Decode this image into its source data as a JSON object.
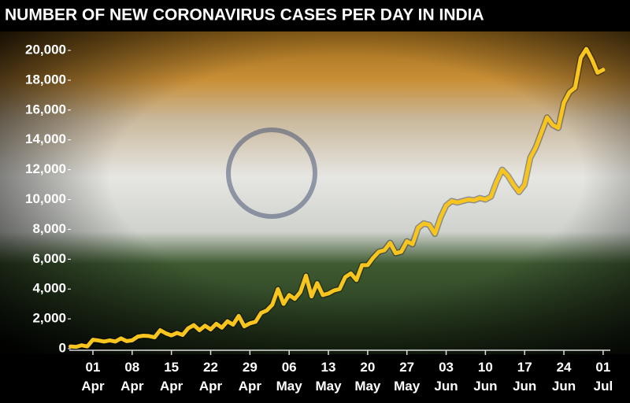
{
  "chart_data": {
    "type": "line",
    "title": "NUMBER OF NEW CORONAVIRUS CASES PER DAY IN INDIA",
    "categories": [
      null,
      null,
      null,
      null,
      "01 Apr",
      null,
      null,
      null,
      null,
      null,
      null,
      "08 Apr",
      null,
      null,
      null,
      null,
      null,
      null,
      "15 Apr",
      null,
      null,
      null,
      null,
      null,
      null,
      "22 Apr",
      null,
      null,
      null,
      null,
      null,
      null,
      "29 Apr",
      null,
      null,
      null,
      null,
      null,
      null,
      "06 May",
      null,
      null,
      null,
      null,
      null,
      null,
      "13 May",
      null,
      null,
      null,
      null,
      null,
      null,
      "20 May",
      null,
      null,
      null,
      null,
      null,
      null,
      "27 May",
      null,
      null,
      null,
      null,
      null,
      null,
      "03 Jun",
      null,
      null,
      null,
      null,
      null,
      null,
      "10 Jun",
      null,
      null,
      null,
      null,
      null,
      null,
      "17 Jun",
      null,
      null,
      null,
      null,
      null,
      null,
      "24 Jun",
      null,
      null,
      null,
      null,
      null,
      null,
      "01 Jul"
    ],
    "series": [
      {
        "name": "New cases",
        "color": "#f7c51e",
        "values": [
          150,
          120,
          230,
          150,
          600,
          550,
          480,
          560,
          480,
          690,
          510,
          560,
          810,
          870,
          850,
          760,
          1240,
          1030,
          890,
          1060,
          920,
          1370,
          1580,
          1240,
          1540,
          1290,
          1670,
          1410,
          1840,
          1610,
          2200,
          1500,
          1700,
          1800,
          2400,
          2560,
          2950,
          4000,
          3000,
          3600,
          3340,
          3800,
          4900,
          3500,
          4400,
          3600,
          3700,
          3900,
          4000,
          4800,
          5050,
          4600,
          5600,
          5600,
          6100,
          6500,
          6600,
          7100,
          6400,
          6500,
          7200,
          7000,
          8100,
          8400,
          8300,
          7700,
          8800,
          9600,
          9900,
          9800,
          9900,
          10000,
          9950,
          10100,
          10000,
          10200,
          11200,
          12000,
          11600,
          11000,
          10500,
          11000,
          12800,
          13500,
          14500,
          15500,
          15000,
          14800,
          16500,
          17200,
          17500,
          19500,
          20100,
          19400,
          18500,
          18700
        ]
      }
    ],
    "ylim": [
      0,
      20000
    ],
    "yticks": [
      {
        "value": 0,
        "label": "0"
      },
      {
        "value": 2000,
        "label": "2,000"
      },
      {
        "value": 4000,
        "label": "4,000"
      },
      {
        "value": 6000,
        "label": "6,000"
      },
      {
        "value": 8000,
        "label": "8,000"
      },
      {
        "value": 10000,
        "label": "10,000"
      },
      {
        "value": 12000,
        "label": "12,000"
      },
      {
        "value": 14000,
        "label": "14,000"
      },
      {
        "value": 16000,
        "label": "16,000"
      },
      {
        "value": 18000,
        "label": "18,000"
      },
      {
        "value": 20000,
        "label": "20,000"
      }
    ]
  }
}
